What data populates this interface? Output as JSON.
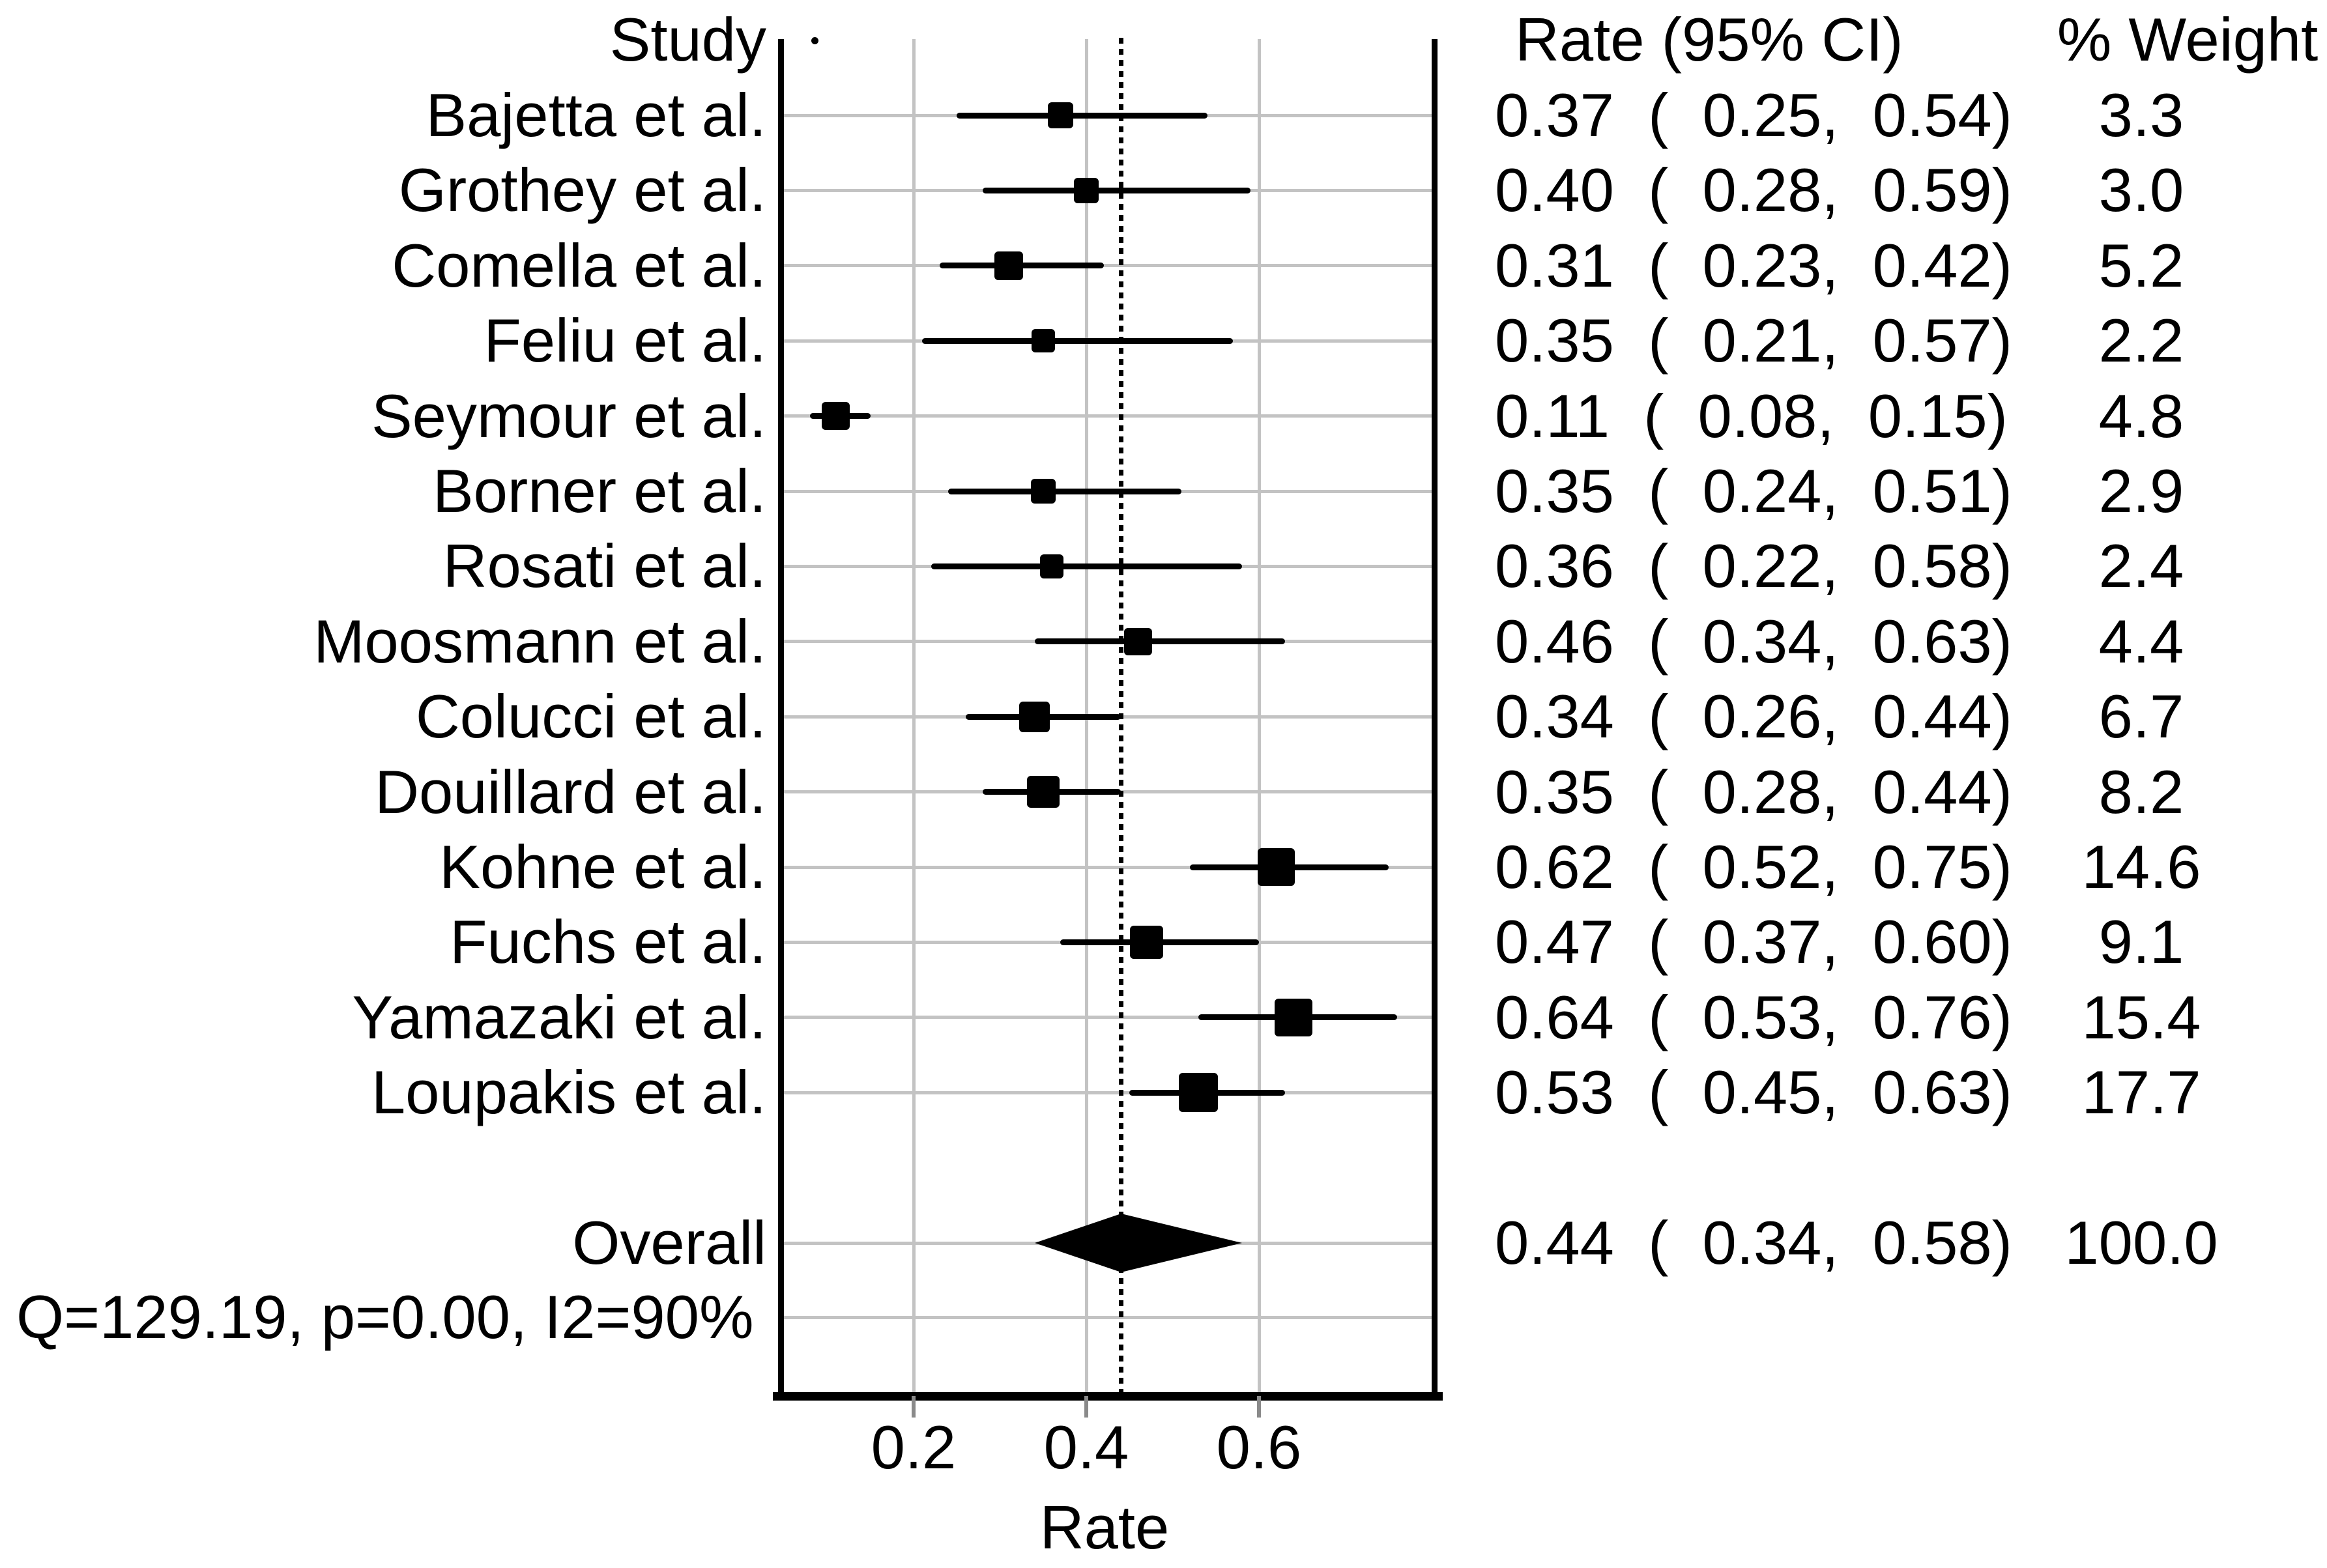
{
  "header": {
    "study": "Study",
    "rate_ci": "Rate (95% CI)",
    "weight": "% Weight"
  },
  "studies": [
    {
      "name": "Bajetta et al.",
      "rate": 0.37,
      "lo": 0.25,
      "hi": 0.54,
      "weight": 3.3,
      "rate_text": "0.37 ( 0.25, 0.54)",
      "weight_text": "3.3"
    },
    {
      "name": "Grothey et al.",
      "rate": 0.4,
      "lo": 0.28,
      "hi": 0.59,
      "weight": 3.0,
      "rate_text": "0.40 ( 0.28, 0.59)",
      "weight_text": "3.0"
    },
    {
      "name": "Comella et al.",
      "rate": 0.31,
      "lo": 0.23,
      "hi": 0.42,
      "weight": 5.2,
      "rate_text": "0.31 ( 0.23, 0.42)",
      "weight_text": "5.2"
    },
    {
      "name": "Feliu et al.",
      "rate": 0.35,
      "lo": 0.21,
      "hi": 0.57,
      "weight": 2.2,
      "rate_text": "0.35 ( 0.21, 0.57)",
      "weight_text": "2.2"
    },
    {
      "name": "Seymour et al.",
      "rate": 0.11,
      "lo": 0.08,
      "hi": 0.15,
      "weight": 4.8,
      "rate_text": "0.11 ( 0.08, 0.15)",
      "weight_text": "4.8"
    },
    {
      "name": "Borner et al.",
      "rate": 0.35,
      "lo": 0.24,
      "hi": 0.51,
      "weight": 2.9,
      "rate_text": "0.35 ( 0.24, 0.51)",
      "weight_text": "2.9"
    },
    {
      "name": "Rosati et al.",
      "rate": 0.36,
      "lo": 0.22,
      "hi": 0.58,
      "weight": 2.4,
      "rate_text": "0.36 ( 0.22, 0.58)",
      "weight_text": "2.4"
    },
    {
      "name": "Moosmann et al.",
      "rate": 0.46,
      "lo": 0.34,
      "hi": 0.63,
      "weight": 4.4,
      "rate_text": "0.46 ( 0.34, 0.63)",
      "weight_text": "4.4"
    },
    {
      "name": "Colucci et al.",
      "rate": 0.34,
      "lo": 0.26,
      "hi": 0.44,
      "weight": 6.7,
      "rate_text": "0.34 ( 0.26, 0.44)",
      "weight_text": "6.7"
    },
    {
      "name": "Douillard et al.",
      "rate": 0.35,
      "lo": 0.28,
      "hi": 0.44,
      "weight": 8.2,
      "rate_text": "0.35 ( 0.28, 0.44)",
      "weight_text": "8.2"
    },
    {
      "name": "Kohne et al.",
      "rate": 0.62,
      "lo": 0.52,
      "hi": 0.75,
      "weight": 14.6,
      "rate_text": "0.62 ( 0.52, 0.75)",
      "weight_text": "14.6"
    },
    {
      "name": "Fuchs et al.",
      "rate": 0.47,
      "lo": 0.37,
      "hi": 0.6,
      "weight": 9.1,
      "rate_text": "0.47 ( 0.37, 0.60)",
      "weight_text": "9.1"
    },
    {
      "name": "Yamazaki et al.",
      "rate": 0.64,
      "lo": 0.53,
      "hi": 0.76,
      "weight": 15.4,
      "rate_text": "0.64 ( 0.53, 0.76)",
      "weight_text": "15.4"
    },
    {
      "name": "Loupakis et al.",
      "rate": 0.53,
      "lo": 0.45,
      "hi": 0.63,
      "weight": 17.7,
      "rate_text": "0.53 ( 0.45, 0.63)",
      "weight_text": "17.7"
    }
  ],
  "overall": {
    "name": "Overall",
    "rate": 0.44,
    "lo": 0.34,
    "hi": 0.58,
    "rate_text": "0.44 ( 0.34, 0.58)",
    "weight_text": "100.0"
  },
  "heterogeneity_text": "Q=129.19, p=0.00, I2=90%",
  "axis": {
    "label": "Rate",
    "ticks": [
      {
        "value": 0.2,
        "label": "0.2"
      },
      {
        "value": 0.4,
        "label": "0.4"
      },
      {
        "value": 0.6,
        "label": "0.6"
      }
    ],
    "reference_value": 0.44
  },
  "colors": {
    "text": "#000000",
    "marker": "#000000",
    "gridline": "#c3c3c3",
    "tick": "#8a8a8a",
    "background": "#ffffff"
  },
  "chart_data": {
    "type": "scatter",
    "subtype": "forest-plot",
    "title": "",
    "xlabel": "Rate",
    "ylabel": "Study",
    "xlim": [
      0.05,
      0.8
    ],
    "x_ticks": [
      0.2,
      0.4,
      0.6
    ],
    "grid": true,
    "reference_line_x": 0.44,
    "series": [
      {
        "name": "Bajetta et al.",
        "x": 0.37,
        "ci": [
          0.25,
          0.54
        ],
        "weight_pct": 3.3
      },
      {
        "name": "Grothey et al.",
        "x": 0.4,
        "ci": [
          0.28,
          0.59
        ],
        "weight_pct": 3.0
      },
      {
        "name": "Comella et al.",
        "x": 0.31,
        "ci": [
          0.23,
          0.42
        ],
        "weight_pct": 5.2
      },
      {
        "name": "Feliu et al.",
        "x": 0.35,
        "ci": [
          0.21,
          0.57
        ],
        "weight_pct": 2.2
      },
      {
        "name": "Seymour et al.",
        "x": 0.11,
        "ci": [
          0.08,
          0.15
        ],
        "weight_pct": 4.8
      },
      {
        "name": "Borner et al.",
        "x": 0.35,
        "ci": [
          0.24,
          0.51
        ],
        "weight_pct": 2.9
      },
      {
        "name": "Rosati et al.",
        "x": 0.36,
        "ci": [
          0.22,
          0.58
        ],
        "weight_pct": 2.4
      },
      {
        "name": "Moosmann et al.",
        "x": 0.46,
        "ci": [
          0.34,
          0.63
        ],
        "weight_pct": 4.4
      },
      {
        "name": "Colucci et al.",
        "x": 0.34,
        "ci": [
          0.26,
          0.44
        ],
        "weight_pct": 6.7
      },
      {
        "name": "Douillard et al.",
        "x": 0.35,
        "ci": [
          0.28,
          0.44
        ],
        "weight_pct": 8.2
      },
      {
        "name": "Kohne et al.",
        "x": 0.62,
        "ci": [
          0.52,
          0.75
        ],
        "weight_pct": 14.6
      },
      {
        "name": "Fuchs et al.",
        "x": 0.47,
        "ci": [
          0.37,
          0.6
        ],
        "weight_pct": 9.1
      },
      {
        "name": "Yamazaki et al.",
        "x": 0.64,
        "ci": [
          0.53,
          0.76
        ],
        "weight_pct": 15.4
      },
      {
        "name": "Loupakis et al.",
        "x": 0.53,
        "ci": [
          0.45,
          0.63
        ],
        "weight_pct": 17.7
      }
    ],
    "overall": {
      "name": "Overall",
      "x": 0.44,
      "ci": [
        0.34,
        0.58
      ],
      "weight_pct": 100.0
    },
    "heterogeneity": {
      "Q": 129.19,
      "p": 0.0,
      "I2_pct": 90
    },
    "legend": false
  }
}
